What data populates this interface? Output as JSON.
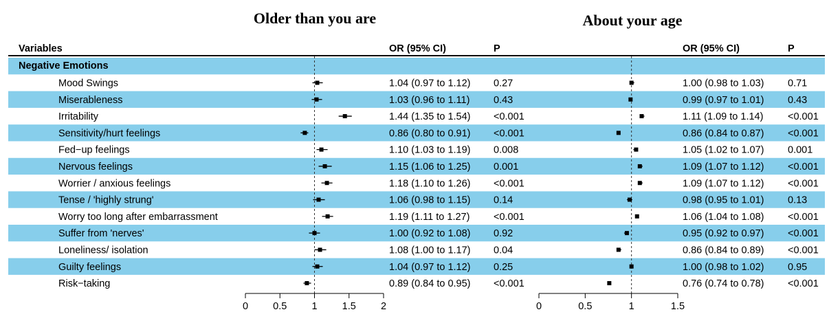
{
  "titles": {
    "left": "Older than you are",
    "right": "About your age"
  },
  "headers": {
    "variables": "Variables",
    "or_left": "OR (95% CI)",
    "p_left": "P",
    "or_right": "OR (95% CI)",
    "p_right": "P"
  },
  "colors": {
    "stripe": "#87ceeb",
    "marker": "#000000",
    "reference_line": "#333333"
  },
  "chart_data": [
    {
      "type": "forest",
      "title": "Older than you are",
      "xlabel": "",
      "ylabel": "",
      "xlim": [
        0,
        2
      ],
      "reference_value": 1,
      "ticks": [
        0,
        0.5,
        1,
        1.5,
        2
      ],
      "tick_labels": [
        "0",
        "0.5",
        "1",
        "1.5",
        "2"
      ],
      "group": "Negative Emotions",
      "rows": [
        {
          "label": "Mood Swings",
          "or": 1.04,
          "lo": 0.97,
          "hi": 1.12,
          "or_text": "1.04 (0.97 to 1.12)",
          "p": "0.27"
        },
        {
          "label": "Miserableness",
          "or": 1.03,
          "lo": 0.96,
          "hi": 1.11,
          "or_text": "1.03 (0.96 to 1.11)",
          "p": "0.43"
        },
        {
          "label": "Irritability",
          "or": 1.44,
          "lo": 1.35,
          "hi": 1.54,
          "or_text": "1.44 (1.35 to 1.54)",
          "p": "<0.001"
        },
        {
          "label": "Sensitivity/hurt feelings",
          "or": 0.86,
          "lo": 0.8,
          "hi": 0.91,
          "or_text": "0.86 (0.80 to 0.91)",
          "p": "<0.001"
        },
        {
          "label": "Fed−up feelings",
          "or": 1.1,
          "lo": 1.03,
          "hi": 1.19,
          "or_text": "1.10 (1.03 to 1.19)",
          "p": "0.008"
        },
        {
          "label": "Nervous feelings",
          "or": 1.15,
          "lo": 1.06,
          "hi": 1.25,
          "or_text": "1.15 (1.06 to 1.25)",
          "p": "0.001"
        },
        {
          "label": "Worrier / anxious feelings",
          "or": 1.18,
          "lo": 1.1,
          "hi": 1.26,
          "or_text": "1.18 (1.10 to 1.26)",
          "p": "<0.001"
        },
        {
          "label": "Tense / 'highly strung'",
          "or": 1.06,
          "lo": 0.98,
          "hi": 1.15,
          "or_text": "1.06 (0.98 to 1.15)",
          "p": "0.14"
        },
        {
          "label": "Worry too long after embarrassment",
          "or": 1.19,
          "lo": 1.11,
          "hi": 1.27,
          "or_text": "1.19 (1.11 to 1.27)",
          "p": "<0.001"
        },
        {
          "label": "Suffer from 'nerves'",
          "or": 1.0,
          "lo": 0.92,
          "hi": 1.08,
          "or_text": "1.00 (0.92 to 1.08)",
          "p": "0.92"
        },
        {
          "label": "Loneliness/ isolation",
          "or": 1.08,
          "lo": 1.0,
          "hi": 1.17,
          "or_text": "1.08 (1.00 to 1.17)",
          "p": "0.04"
        },
        {
          "label": "Guilty feelings",
          "or": 1.04,
          "lo": 0.97,
          "hi": 1.12,
          "or_text": "1.04 (0.97 to 1.12)",
          "p": "0.25"
        },
        {
          "label": "Risk−taking",
          "or": 0.89,
          "lo": 0.84,
          "hi": 0.95,
          "or_text": "0.89 (0.84 to 0.95)",
          "p": "<0.001"
        }
      ]
    },
    {
      "type": "forest",
      "title": "About your age",
      "xlabel": "",
      "ylabel": "",
      "xlim": [
        0,
        1.5
      ],
      "reference_value": 1,
      "ticks": [
        0,
        0.5,
        1,
        1.5
      ],
      "tick_labels": [
        "0",
        "0.5",
        "1",
        "1.5"
      ],
      "group": "Negative Emotions",
      "rows": [
        {
          "label": "Mood Swings",
          "or": 1.0,
          "lo": 0.98,
          "hi": 1.03,
          "or_text": "1.00 (0.98 to 1.03)",
          "p": "0.71"
        },
        {
          "label": "Miserableness",
          "or": 0.99,
          "lo": 0.97,
          "hi": 1.01,
          "or_text": "0.99 (0.97 to 1.01)",
          "p": "0.43"
        },
        {
          "label": "Irritability",
          "or": 1.11,
          "lo": 1.09,
          "hi": 1.14,
          "or_text": "1.11 (1.09 to 1.14)",
          "p": "<0.001"
        },
        {
          "label": "Sensitivity/hurt feelings",
          "or": 0.86,
          "lo": 0.84,
          "hi": 0.87,
          "or_text": "0.86 (0.84 to 0.87)",
          "p": "<0.001"
        },
        {
          "label": "Fed−up feelings",
          "or": 1.05,
          "lo": 1.02,
          "hi": 1.07,
          "or_text": "1.05 (1.02 to 1.07)",
          "p": "0.001"
        },
        {
          "label": "Nervous feelings",
          "or": 1.09,
          "lo": 1.07,
          "hi": 1.12,
          "or_text": "1.09 (1.07 to 1.12)",
          "p": "<0.001"
        },
        {
          "label": "Worrier / anxious feelings",
          "or": 1.09,
          "lo": 1.07,
          "hi": 1.12,
          "or_text": "1.09 (1.07 to 1.12)",
          "p": "<0.001"
        },
        {
          "label": "Tense / 'highly strung'",
          "or": 0.98,
          "lo": 0.95,
          "hi": 1.01,
          "or_text": "0.98 (0.95 to 1.01)",
          "p": "0.13"
        },
        {
          "label": "Worry too long after embarrassment",
          "or": 1.06,
          "lo": 1.04,
          "hi": 1.08,
          "or_text": "1.06 (1.04 to 1.08)",
          "p": "<0.001"
        },
        {
          "label": "Suffer from 'nerves'",
          "or": 0.95,
          "lo": 0.92,
          "hi": 0.97,
          "or_text": "0.95 (0.92 to 0.97)",
          "p": "<0.001"
        },
        {
          "label": "Loneliness/ isolation",
          "or": 0.86,
          "lo": 0.84,
          "hi": 0.89,
          "or_text": "0.86 (0.84 to 0.89)",
          "p": "<0.001"
        },
        {
          "label": "Guilty feelings",
          "or": 1.0,
          "lo": 0.98,
          "hi": 1.02,
          "or_text": "1.00 (0.98 to 1.02)",
          "p": "0.95"
        },
        {
          "label": "Risk−taking",
          "or": 0.76,
          "lo": 0.74,
          "hi": 0.78,
          "or_text": "0.76 (0.74 to 0.78)",
          "p": "<0.001"
        }
      ]
    }
  ]
}
